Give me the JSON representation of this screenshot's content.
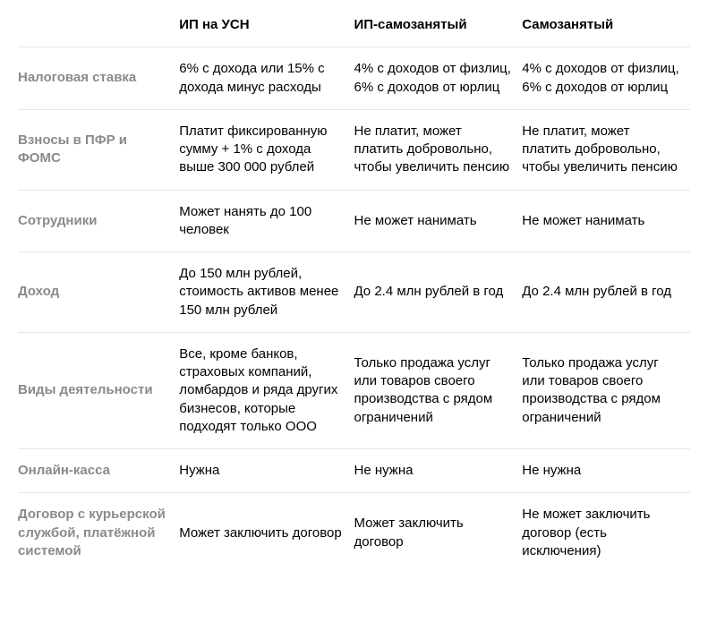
{
  "table": {
    "type": "table",
    "background_color": "#ffffff",
    "border_color": "#e6e6e6",
    "header_text_color": "#000000",
    "rowheader_text_color": "#8a8a8a",
    "cell_text_color": "#000000",
    "font_size_pt": 11,
    "header_font_weight": 700,
    "rowheader_font_weight": 700,
    "cell_font_weight": 400,
    "column_widths": [
      "24%",
      "26%",
      "25%",
      "25%"
    ],
    "columns": [
      "",
      "ИП на УСН",
      "ИП-самозанятый",
      "Самозанятый"
    ],
    "rows": [
      {
        "label": "Налоговая ставка",
        "cells": [
          "6% с дохода или 15% с дохода минус расходы",
          "4% с доходов от физлиц, 6% с доходов от юрлиц",
          "4% с доходов от физлиц, 6% с доходов от юрлиц"
        ]
      },
      {
        "label": "Взносы в ПФР и ФОМС",
        "cells": [
          "Платит фиксированную сумму + 1% с дохода выше 300 000 рублей",
          "Не платит, может платить добровольно, чтобы увеличить пенсию",
          "Не платит, может платить добровольно, чтобы увеличить пенсию"
        ]
      },
      {
        "label": "Сотрудники",
        "cells": [
          "Может нанять до 100 человек",
          "Не может нанимать",
          "Не может нанимать"
        ]
      },
      {
        "label": "Доход",
        "cells": [
          "До 150 млн рублей, стоимость активов менее 150 млн рублей",
          "До 2.4 млн рублей в год",
          "До 2.4 млн рублей в год"
        ]
      },
      {
        "label": "Виды деятельности",
        "cells": [
          "Все, кроме банков, страховых компаний, ломбардов и ряда других бизнесов, которые подходят только ООО",
          "Только продажа услуг или товаров своего производства с рядом ограничений",
          "Только продажа услуг или товаров своего производства с рядом ограничений"
        ]
      },
      {
        "label": "Онлайн-касса",
        "cells": [
          "Нужна",
          "Не нужна",
          "Не нужна"
        ]
      },
      {
        "label": "Договор с курьерской службой, платёжной системой",
        "cells": [
          "Может заключить договор",
          "Может заключить договор",
          "Не может заключить договор (есть исключения)"
        ]
      }
    ]
  }
}
